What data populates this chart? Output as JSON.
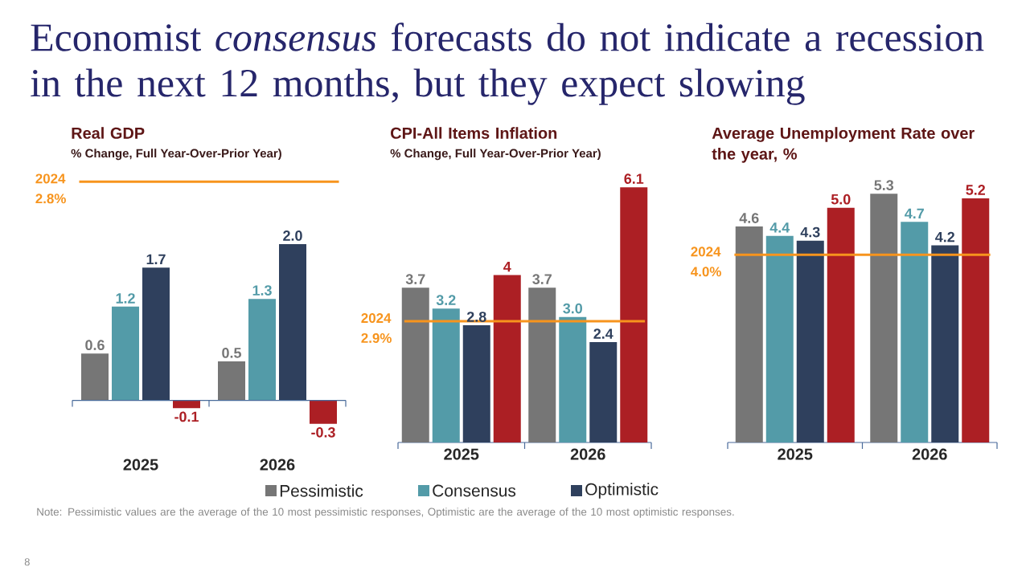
{
  "chart_data": [
    {
      "type": "other",
      "title": "Economist *consensus* forecasts do not indicate a recession in the next 12 months, but they expect slowing",
      "annotations": [
        "Note: Pessimistic values are the average of the 10 most pessimistic responses, Optimistic are the average of the 10 most optimistic responses.",
        "8"
      ]
    },
    {
      "type": "bar",
      "title": "Real GDP",
      "subtitle": "% Change, Full Year-Over-Prior Year)",
      "categories": [
        "2025",
        "2026"
      ],
      "series": [
        {
          "color": "#767676",
          "values": [
            0.6,
            0.5
          ],
          "value_labels": [
            "0.6",
            "0.5"
          ]
        },
        {
          "color": "#539ba8",
          "values": [
            1.2,
            1.3
          ],
          "value_labels": [
            "1.2",
            "1.3"
          ]
        },
        {
          "color": "#2f405d",
          "values": [
            1.7,
            2.0
          ],
          "value_labels": [
            "1.7",
            "2.0"
          ]
        },
        {
          "color": "#ac1f24",
          "values": [
            -0.1,
            -0.3
          ],
          "value_labels": [
            "-0.1",
            "-0.3"
          ]
        }
      ],
      "ref_lines": [
        {
          "axis": "y",
          "value": 2.8,
          "label": "2024 2.8%",
          "color": "#f7941d"
        },
        {
          "axis": "y",
          "value": 0,
          "color": "#4a6b9b"
        }
      ]
    },
    {
      "type": "bar",
      "title": "CPI-All Items Inflation",
      "subtitle": "% Change, Full Year-Over-Prior Year)",
      "categories": [
        "2025",
        "2026"
      ],
      "legend": "bottom",
      "series": [
        {
          "name": "Pessimistic",
          "color": "#767676",
          "values": [
            3.7,
            3.7
          ],
          "value_labels": [
            "3.7",
            "3.7"
          ]
        },
        {
          "name": "Consensus",
          "color": "#539ba8",
          "values": [
            3.2,
            3.0
          ],
          "value_labels": [
            "3.2",
            "3.0"
          ]
        },
        {
          "name": "Optimistic",
          "color": "#2f405d",
          "values": [
            2.8,
            2.4
          ],
          "value_labels": [
            "2.8",
            "2.4"
          ]
        },
        {
          "color": "#ac1f24",
          "values": [
            4,
            6.1
          ],
          "value_labels": [
            "4",
            "6.1"
          ]
        }
      ],
      "ref_lines": [
        {
          "axis": "y",
          "value": 2.9,
          "label": "2024 2.9%",
          "color": "#f7941d"
        }
      ]
    },
    {
      "type": "bar",
      "title": "Average Unemployment Rate over the year, %",
      "categories": [
        "2025",
        "2026"
      ],
      "series": [
        {
          "color": "#767676",
          "values": [
            4.6,
            5.3
          ],
          "value_labels": [
            "4.6",
            "5.3"
          ]
        },
        {
          "color": "#539ba8",
          "values": [
            4.4,
            4.7
          ],
          "value_labels": [
            "4.4",
            "4.7"
          ]
        },
        {
          "color": "#2f405d",
          "values": [
            4.3,
            4.2
          ],
          "value_labels": [
            "4.3",
            "4.2"
          ]
        },
        {
          "color": "#ac1f24",
          "values": [
            5.0,
            5.2
          ],
          "value_labels": [
            "5.0",
            "5.2"
          ]
        }
      ],
      "ref_lines": [
        {
          "axis": "y",
          "value": 4.0,
          "label": "2024 4.0%",
          "color": "#f7941d"
        }
      ]
    }
  ]
}
